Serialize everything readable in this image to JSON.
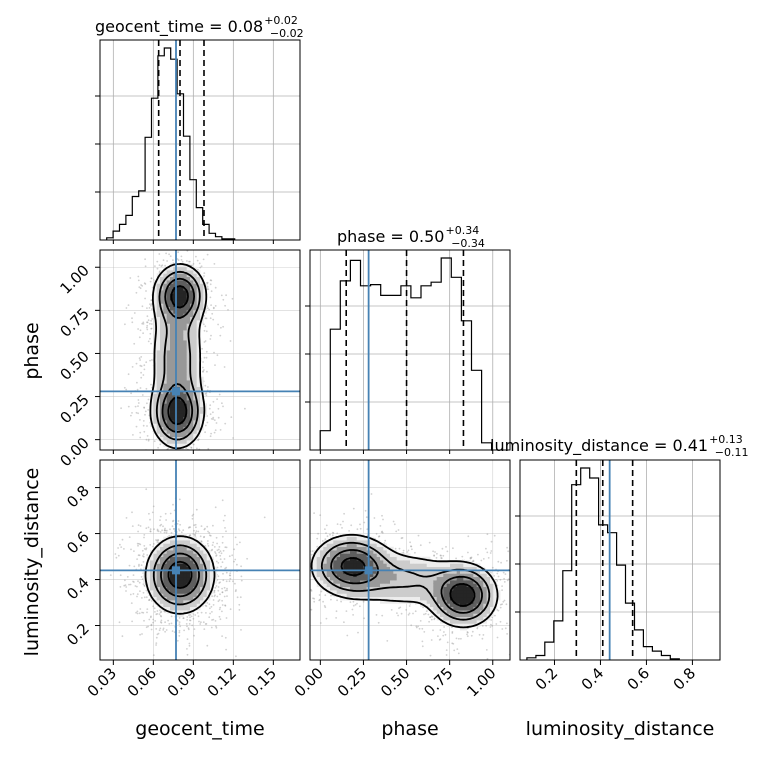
{
  "chart_data": {
    "type": "corner",
    "grid": true,
    "truth": {
      "geocent_time": 0.077,
      "phase": 0.28,
      "luminosity_distance": 0.44
    },
    "truth_color": "#4682b4",
    "parameters": [
      {
        "name": "geocent_time",
        "xlabel": "geocent_time",
        "title": {
          "lhs": "geocent_time = ",
          "median": "0.08",
          "plus": "+0.02",
          "minus": "−0.02"
        },
        "range": [
          0.02,
          0.17
        ],
        "ticks": [
          0.03,
          0.06,
          0.09,
          0.12,
          0.15
        ],
        "tick_labels": [
          "0.03",
          "0.06",
          "0.09",
          "0.12",
          "0.15"
        ],
        "quantiles": [
          0.064,
          0.08,
          0.098
        ],
        "hist": {
          "edges_start": 0.025,
          "bin_width": 0.0048,
          "counts": [
            2,
            8,
            14,
            22,
            39,
            44,
            92,
            127,
            165,
            172,
            162,
            131,
            93,
            54,
            29,
            14,
            6,
            3,
            1,
            1
          ]
        }
      },
      {
        "name": "phase",
        "xlabel": "phase",
        "ylabel": "phase",
        "title": {
          "lhs": "phase = ",
          "median": "0.50",
          "plus": "+0.34",
          "minus": "−0.34"
        },
        "range": [
          -0.06,
          1.1
        ],
        "ticks": [
          0.0,
          0.25,
          0.5,
          0.75,
          1.0
        ],
        "tick_labels": [
          "0.00",
          "0.25",
          "0.50",
          "0.75",
          "1.00"
        ],
        "quantiles": [
          0.15,
          0.5,
          0.83
        ],
        "hist": {
          "edges_start": -0.001,
          "bin_width": 0.0585,
          "counts": [
            16,
            100,
            140,
            157,
            136,
            137,
            128,
            128,
            136,
            126,
            136,
            139,
            159,
            143,
            107,
            66,
            6
          ]
        }
      },
      {
        "name": "luminosity_distance",
        "xlabel": "luminosity_distance",
        "ylabel": "luminosity_distance",
        "title": {
          "lhs": "luminosity_distance = ",
          "median": "0.41",
          "plus": "+0.13",
          "minus": "−0.11"
        },
        "range": [
          0.05,
          0.92
        ],
        "ticks": [
          0.2,
          0.4,
          0.6,
          0.8
        ],
        "tick_labels": [
          "0.2",
          "0.4",
          "0.6",
          "0.8"
        ],
        "quantiles": [
          0.295,
          0.41,
          0.54
        ],
        "hist": {
          "edges_start": 0.08,
          "bin_width": 0.039,
          "counts": [
            2,
            4,
            16,
            35,
            80,
            157,
            172,
            163,
            121,
            114,
            85,
            51,
            27,
            12,
            8,
            4,
            1
          ]
        }
      }
    ],
    "panels_2d": [
      {
        "x": "geocent_time",
        "y": "phase",
        "blobs": [
          [
            0.08,
            0.84,
            0.01,
            0.09,
            1.0
          ],
          [
            0.078,
            0.15,
            0.01,
            0.1,
            1.0
          ],
          [
            0.078,
            0.48,
            0.011,
            0.22,
            0.55
          ]
        ]
      },
      {
        "x": "geocent_time",
        "y": "luminosity_distance",
        "blobs": [
          [
            0.08,
            0.42,
            0.013,
            0.085,
            1.0
          ]
        ]
      },
      {
        "x": "phase",
        "y": "luminosity_distance",
        "blobs": [
          [
            0.18,
            0.46,
            0.12,
            0.07,
            0.9
          ],
          [
            0.83,
            0.33,
            0.1,
            0.07,
            1.0
          ],
          [
            0.5,
            0.4,
            0.18,
            0.07,
            0.35
          ]
        ]
      }
    ]
  }
}
